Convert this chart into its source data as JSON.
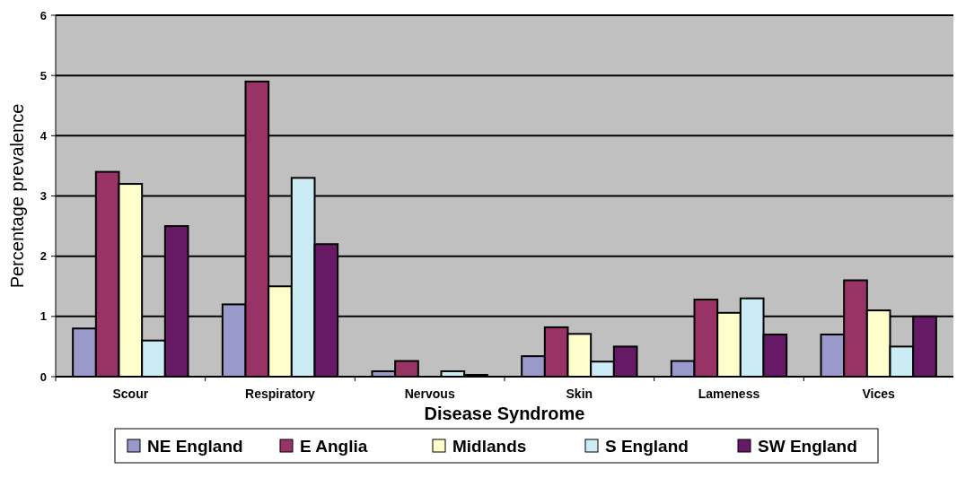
{
  "chart_data": {
    "type": "bar",
    "xlabel": "Disease Syndrome",
    "ylabel": "Percentage prevalence",
    "categories": [
      "Scour",
      "Respiratory",
      "Nervous",
      "Skin",
      "Lameness",
      "Vices"
    ],
    "series": [
      {
        "name": "NE England",
        "color": "#9999cc",
        "values": [
          0.8,
          1.2,
          0.09,
          0.34,
          0.26,
          0.7
        ]
      },
      {
        "name": "E Anglia",
        "color": "#993366",
        "values": [
          3.4,
          4.9,
          0.26,
          0.82,
          1.28,
          1.6
        ]
      },
      {
        "name": "Midlands",
        "color": "#ffffcc",
        "values": [
          3.2,
          1.5,
          0,
          0.71,
          1.06,
          1.1
        ]
      },
      {
        "name": "S England",
        "color": "#ccecf5",
        "values": [
          0.6,
          3.3,
          0.09,
          0.25,
          1.3,
          0.5
        ]
      },
      {
        "name": "SW England",
        "color": "#661a66",
        "values": [
          2.5,
          2.2,
          0.03,
          0.5,
          0.7,
          1.0
        ]
      }
    ],
    "ylim": [
      0,
      6
    ],
    "yticks": [
      0,
      1,
      2,
      3,
      4,
      5,
      6
    ],
    "grid": "y",
    "legend": "bottom"
  }
}
